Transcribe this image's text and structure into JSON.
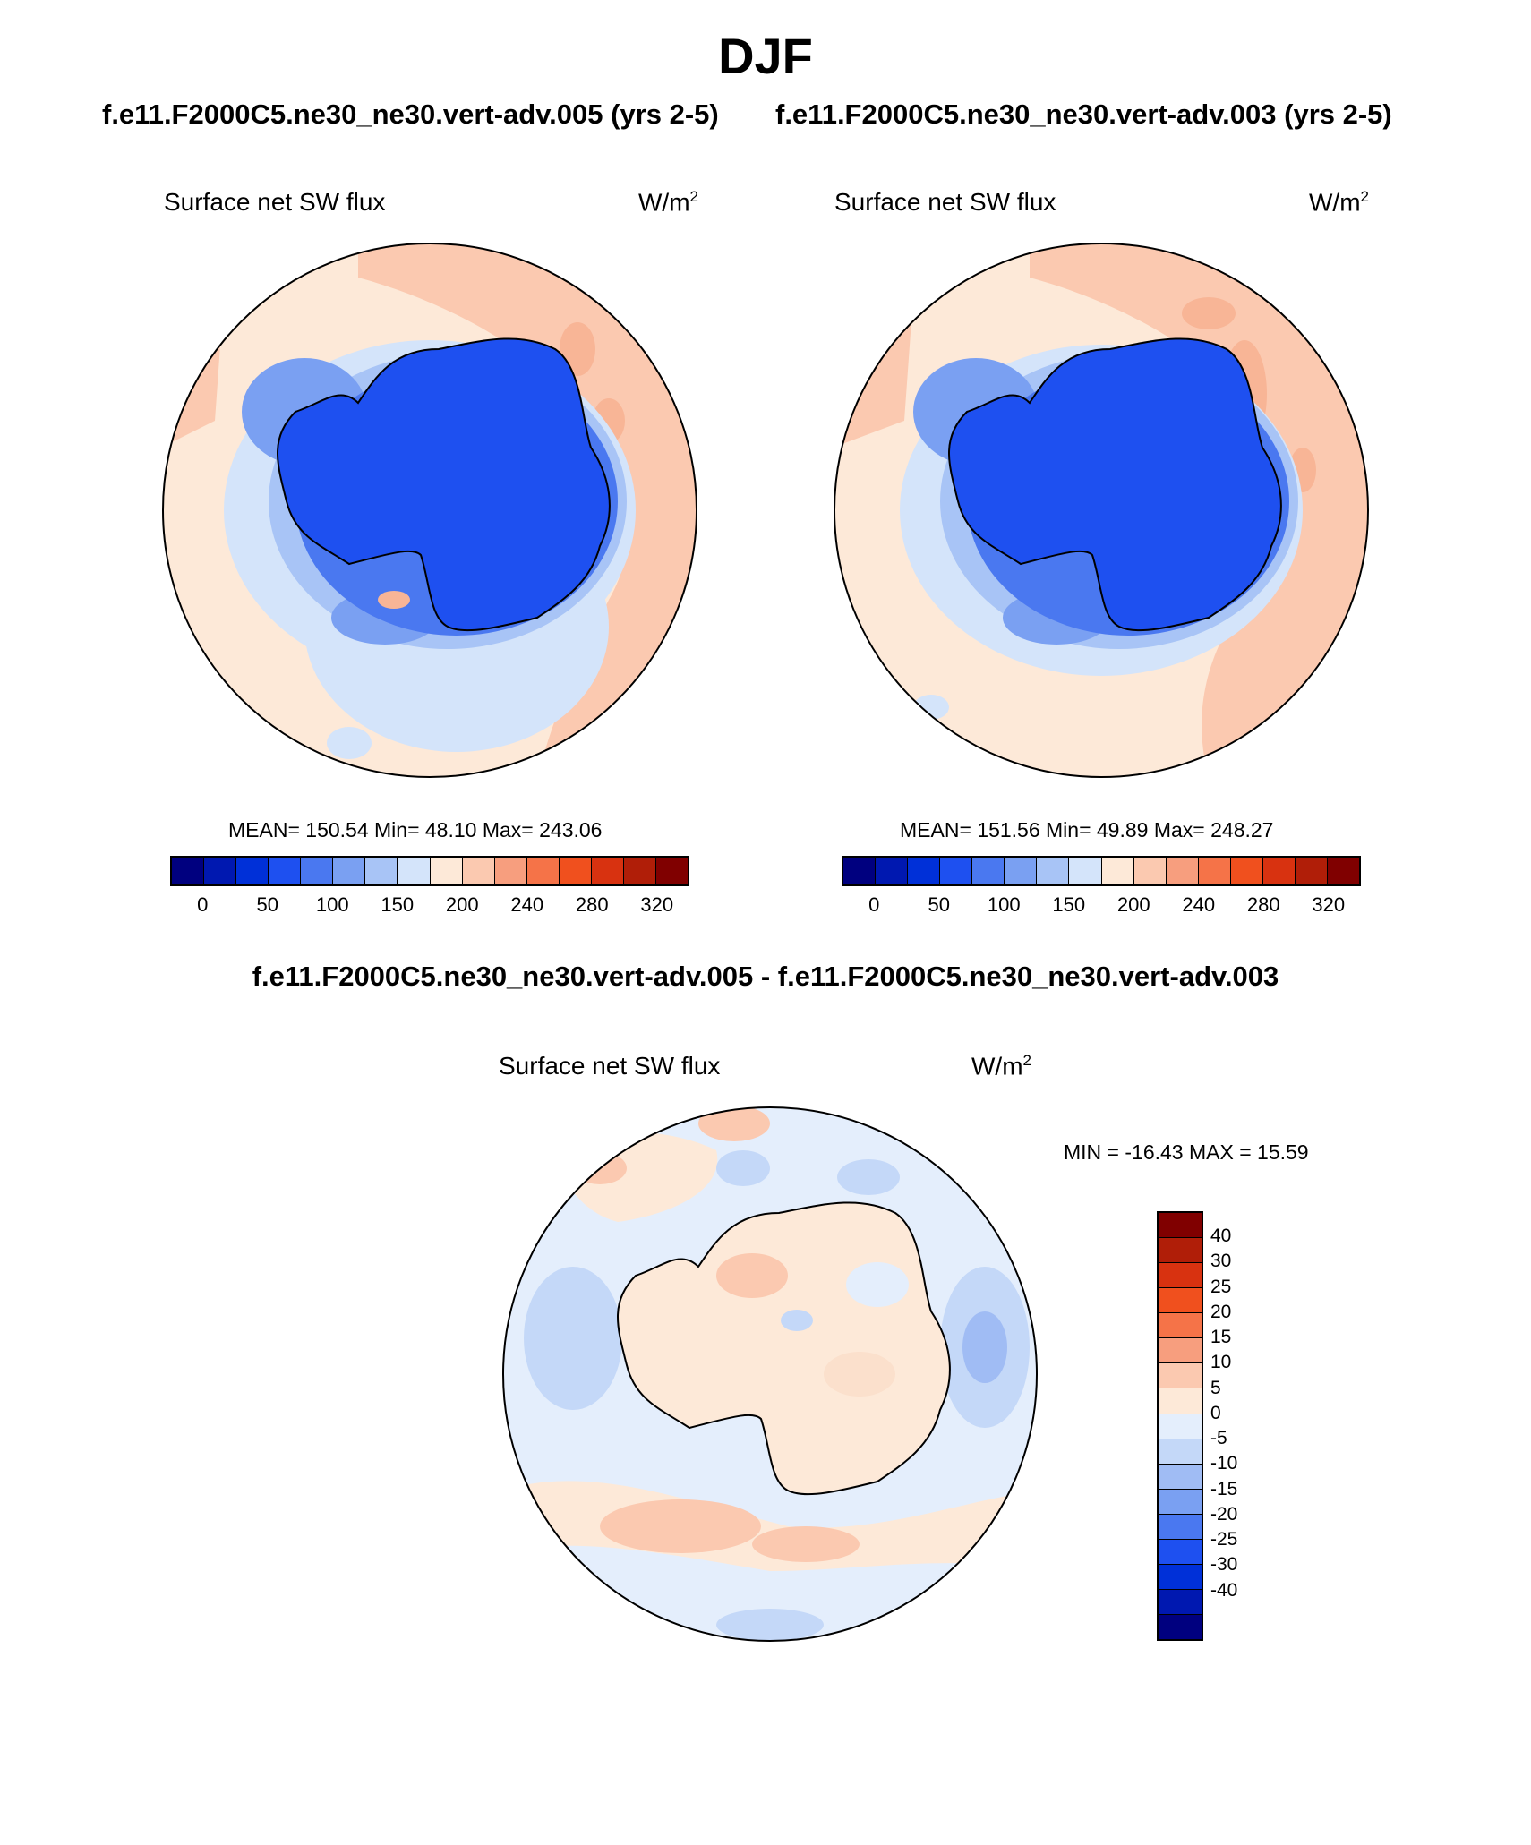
{
  "figure": {
    "title": "DJF",
    "subtitle_left": "f.e11.F2000C5.ne30_ne30.vert-adv.005 (yrs 2-5)",
    "subtitle_right": "f.e11.F2000C5.ne30_ne30.vert-adv.003 (yrs 2-5)",
    "diff_title": "f.e11.F2000C5.ne30_ne30.vert-adv.005 - f.e11.F2000C5.ne30_ne30.vert-adv.003"
  },
  "panel_left": {
    "variable": "Surface net SW flux",
    "units": "W/m",
    "units_sup": "2",
    "stats_text": "MEAN= 150.54  Min=  48.10  Max= 243.06"
  },
  "panel_right": {
    "variable": "Surface net SW flux",
    "units": "W/m",
    "units_sup": "2",
    "stats_text": "MEAN= 151.56  Min=  49.89  Max= 248.27"
  },
  "panel_diff": {
    "variable": "Surface net SW flux",
    "units": "W/m",
    "units_sup": "2",
    "stats_text": "MIN = -16.43 MAX =  15.59"
  },
  "colorbar_main": {
    "colors": [
      "#00007f",
      "#0018b0",
      "#0030d8",
      "#1e50f0",
      "#4a78f0",
      "#7aa0f2",
      "#a8c4f6",
      "#d4e4fa",
      "#fde9d8",
      "#fbc9b0",
      "#f79e7e",
      "#f57348",
      "#f0501e",
      "#d83210",
      "#b01e08",
      "#800000"
    ],
    "ticks": [
      "0",
      "50",
      "100",
      "150",
      "200",
      "240",
      "280",
      "320"
    ]
  },
  "colorbar_diff": {
    "colors": [
      "#800000",
      "#b01e08",
      "#d83210",
      "#f0501e",
      "#f57348",
      "#f79e7e",
      "#fbc9b0",
      "#fde9d8",
      "#e4eefc",
      "#c4d8f8",
      "#a0bcf4",
      "#7aa0f2",
      "#4a78f0",
      "#1e50f0",
      "#0030d8",
      "#0018b0",
      "#00007f"
    ],
    "ticks": [
      "40",
      "30",
      "25",
      "20",
      "15",
      "10",
      "5",
      "0",
      "-5",
      "-10",
      "-15",
      "-20",
      "-25",
      "-30",
      "-40"
    ]
  },
  "icons": {
    "map_left": "antarctica-polar-map",
    "map_right": "antarctica-polar-map",
    "map_diff": "antarctica-difference-map"
  }
}
